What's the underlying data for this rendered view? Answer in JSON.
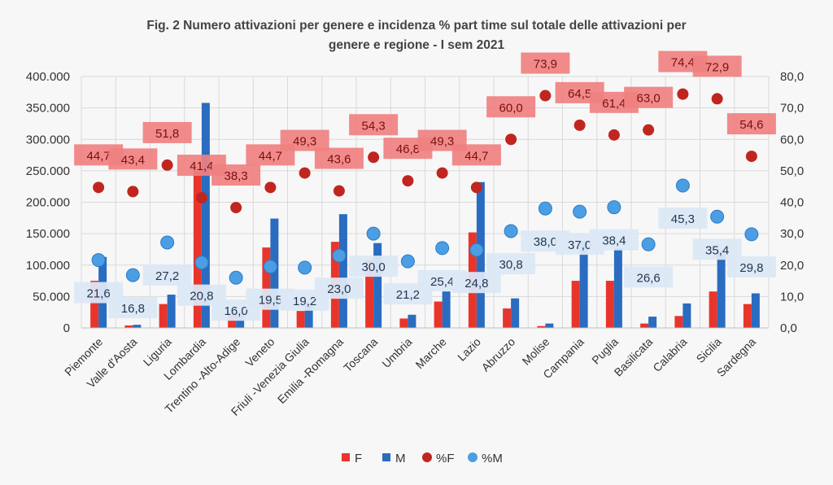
{
  "chart_data": {
    "type": "bar",
    "title_line1": "Fig. 2 Numero attivazioni per genere e incidenza % part time sul totale delle attivazioni per",
    "title_line2": "genere e regione - I sem 2021",
    "categories": [
      "Piemonte",
      "Valle d'Aosta",
      "Liguria",
      "Lombardia",
      "Trentino -Alto-Adige",
      "Veneto",
      "Friuli -Venezia Giulia",
      "Emilia -Romagna",
      "Toscana",
      "Umbria",
      "Marche",
      "Lazio",
      "Abruzzo",
      "Molise",
      "Campania",
      "Puglia",
      "Basilicata",
      "Calabria",
      "Sicilia",
      "Sardegna"
    ],
    "y_left": {
      "range": [
        0,
        400000
      ],
      "ticks": [
        "0",
        "50.000",
        "100.000",
        "150.000",
        "200.000",
        "250.000",
        "300.000",
        "350.000",
        "400.000"
      ]
    },
    "y_right": {
      "range": [
        0,
        80
      ],
      "ticks": [
        "0,0",
        "10,0",
        "20,0",
        "30,0",
        "40,0",
        "50,0",
        "60,0",
        "70,0",
        "80,0"
      ]
    },
    "grid": true,
    "legend_position": "bottom",
    "series": [
      {
        "name": "F",
        "type": "bar",
        "axis": "left",
        "color": "#e8352b",
        "values": [
          75000,
          4000,
          38000,
          250000,
          25000,
          128000,
          27000,
          137000,
          108000,
          15000,
          42000,
          152000,
          31000,
          3000,
          75000,
          75000,
          7000,
          19000,
          58000,
          38000
        ]
      },
      {
        "name": "M",
        "type": "bar",
        "axis": "left",
        "color": "#2a6cc0",
        "values": [
          113000,
          5000,
          53000,
          358000,
          26000,
          174000,
          38000,
          181000,
          135000,
          21000,
          58000,
          232000,
          47000,
          7000,
          139000,
          127000,
          18000,
          39000,
          122000,
          55000
        ]
      },
      {
        "name": "%F",
        "type": "scatter",
        "axis": "right",
        "color": "#c0261f",
        "values": [
          44.7,
          43.4,
          51.8,
          41.4,
          38.3,
          44.7,
          49.3,
          43.6,
          54.3,
          46.8,
          49.3,
          44.7,
          60.0,
          73.9,
          64.5,
          61.4,
          63.0,
          74.4,
          72.9,
          54.6
        ],
        "labels": [
          "44,7",
          "43,4",
          "51,8",
          "41,4",
          "38,3",
          "44,7",
          "49,3",
          "43,6",
          "54,3",
          "46,8",
          "49,3",
          "44,7",
          "60,0",
          "73,9",
          "64,5",
          "61,4",
          "63,0",
          "74,4",
          "72,9",
          "54,6"
        ]
      },
      {
        "name": "%M",
        "type": "scatter",
        "axis": "right",
        "color": "#4b9ee4",
        "values": [
          21.6,
          16.8,
          27.2,
          20.8,
          16.0,
          19.5,
          19.2,
          23.0,
          30.0,
          21.2,
          25.4,
          24.8,
          30.8,
          38.0,
          37.0,
          38.4,
          26.6,
          45.3,
          35.4,
          29.8
        ],
        "labels": [
          "21,6",
          "16,8",
          "27,2",
          "20,8",
          "16,0",
          "19,5",
          "19,2",
          "23,0",
          "30,0",
          "21,2",
          "25,4",
          "24,8",
          "30,8",
          "38,0",
          "37,0",
          "38,4",
          "26,6",
          "45,3",
          "35,4",
          "29,8"
        ]
      }
    ]
  }
}
